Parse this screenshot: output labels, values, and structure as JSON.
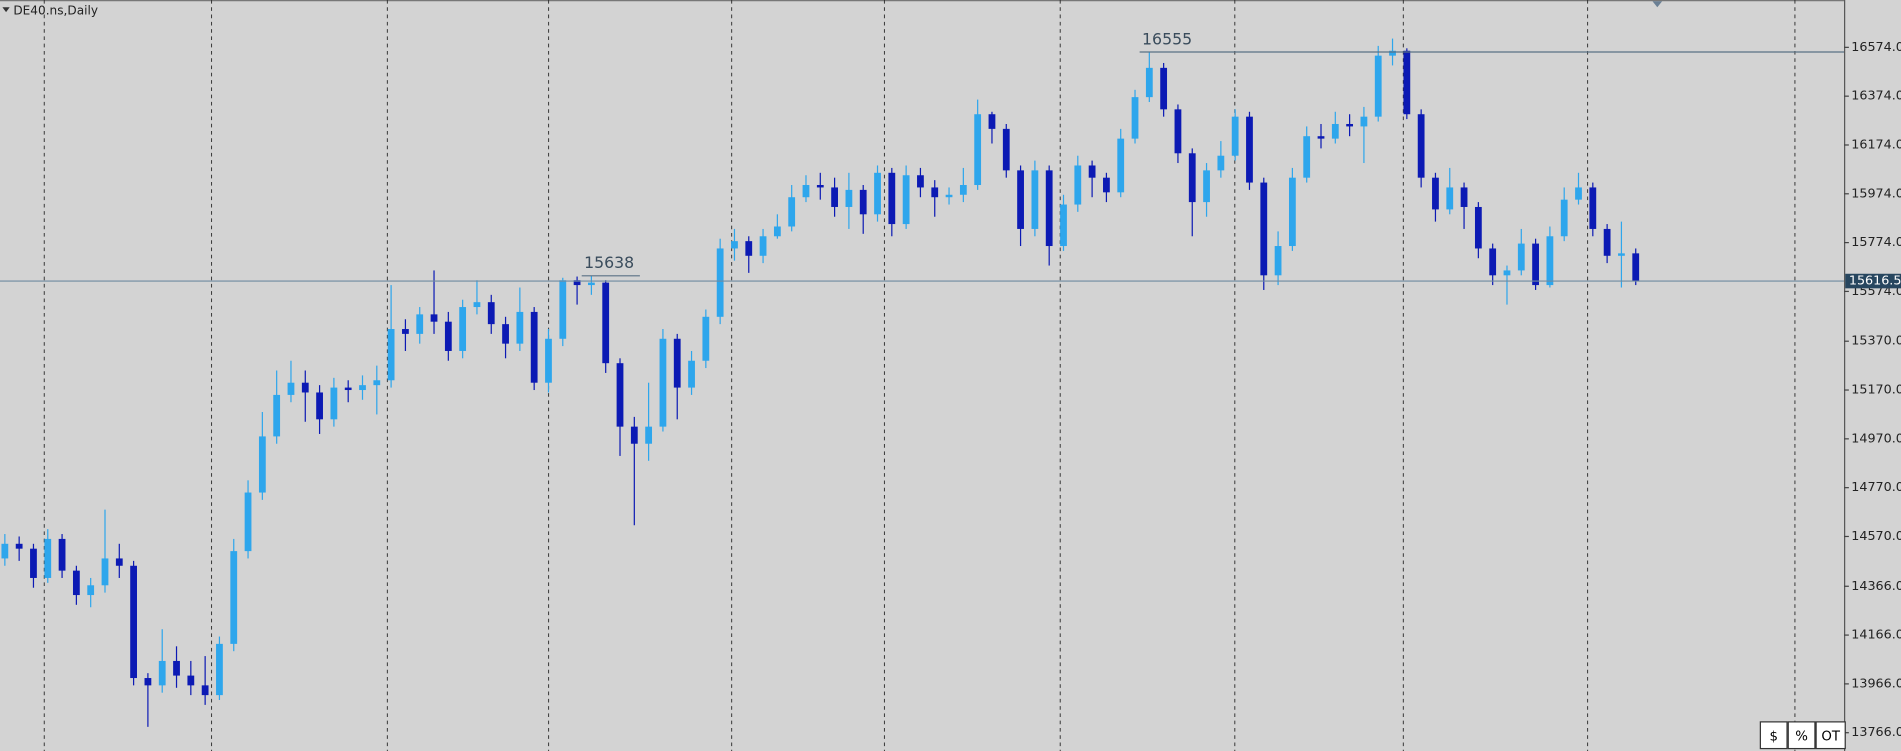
{
  "chart_data": {
    "type": "candlestick",
    "title": "DE40.ns,Daily",
    "up_color": "#2ea6ec",
    "down_color": "#0c1ab4",
    "open": [
      14480,
      14540,
      14520,
      14400,
      14560,
      14430,
      14330,
      14370,
      14480,
      14450,
      13990,
      13960,
      14060,
      14000,
      13960,
      13920,
      14130,
      14510,
      14750,
      14980,
      15150,
      15200,
      15160,
      15050,
      15180,
      15170,
      15190,
      15210,
      15420,
      15400,
      15480,
      15450,
      15330,
      15510,
      15530,
      15440,
      15360,
      15490,
      15200,
      15380,
      15620,
      15600,
      15610,
      15280,
      15020,
      14950,
      15020,
      15380,
      15180,
      15290,
      15470,
      15750,
      15780,
      15720,
      15800,
      15840,
      15960,
      16010,
      16000,
      15920,
      15990,
      15890,
      16060,
      15850,
      16050,
      16000,
      15960,
      15970,
      16010,
      16300,
      16240,
      16070,
      15830,
      16070,
      15760,
      15930,
      16090,
      16040,
      15980,
      16200,
      16370,
      16490,
      16320,
      16140,
      15940,
      16070,
      16130,
      16290,
      16020,
      15640,
      15760,
      16040,
      16210,
      16200,
      16260,
      16250,
      16290,
      16540,
      16560,
      16300,
      16040,
      15910,
      16000,
      15920,
      15750,
      15640,
      15660,
      15770,
      15600,
      15800,
      15950,
      16000,
      15830,
      15720,
      15730
    ],
    "high": [
      14580,
      14570,
      14540,
      14600,
      14580,
      14450,
      14400,
      14680,
      14540,
      14470,
      14010,
      14190,
      14120,
      14060,
      14080,
      14160,
      14560,
      14800,
      15080,
      15250,
      15290,
      15250,
      15190,
      15220,
      15210,
      15230,
      15270,
      15600,
      15460,
      15510,
      15660,
      15490,
      15540,
      15620,
      15560,
      15470,
      15590,
      15510,
      15420,
      15630,
      15635,
      15638,
      15620,
      15300,
      15060,
      15200,
      15420,
      15400,
      15330,
      15500,
      15790,
      15830,
      15800,
      15830,
      15890,
      16010,
      16050,
      16060,
      16040,
      16060,
      16010,
      16090,
      16080,
      16090,
      16080,
      16030,
      16000,
      16080,
      16360,
      16310,
      16260,
      16090,
      16110,
      16090,
      15970,
      16130,
      16110,
      16060,
      16240,
      16400,
      16555,
      16510,
      16340,
      16160,
      16100,
      16190,
      16320,
      16310,
      16040,
      15820,
      16080,
      16250,
      16260,
      16310,
      16300,
      16330,
      16580,
      16610,
      16570,
      16320,
      16060,
      16080,
      16020,
      15940,
      15770,
      15680,
      15830,
      15790,
      15840,
      16000,
      16060,
      16020,
      15850,
      15860,
      15750
    ],
    "low": [
      14450,
      14470,
      14360,
      14380,
      14400,
      14290,
      14280,
      14340,
      14400,
      13960,
      13790,
      13930,
      13950,
      13920,
      13880,
      13900,
      14100,
      14480,
      14720,
      14950,
      15120,
      15040,
      14990,
      15020,
      15120,
      15130,
      15070,
      15180,
      15330,
      15360,
      15400,
      15290,
      15300,
      15480,
      15400,
      15300,
      15330,
      15170,
      15160,
      15350,
      15520,
      15560,
      15240,
      14900,
      14616,
      14880,
      15000,
      15050,
      15150,
      15260,
      15440,
      15700,
      15650,
      15690,
      15790,
      15820,
      15940,
      15950,
      15880,
      15830,
      15810,
      15860,
      15800,
      15830,
      15960,
      15880,
      15930,
      15940,
      15990,
      16180,
      16040,
      15760,
      15800,
      15680,
      15740,
      15900,
      15960,
      15940,
      15960,
      16180,
      16350,
      16290,
      16100,
      15800,
      15880,
      16040,
      16110,
      15990,
      15580,
      15600,
      15740,
      16020,
      16160,
      16180,
      16210,
      16100,
      16270,
      16500,
      16280,
      16000,
      15860,
      15890,
      15830,
      15710,
      15600,
      15520,
      15640,
      15580,
      15590,
      15780,
      15930,
      15800,
      15690,
      15590,
      15600
    ],
    "close": [
      14540,
      14520,
      14400,
      14560,
      14430,
      14330,
      14370,
      14480,
      14450,
      13990,
      13960,
      14060,
      14000,
      13960,
      13920,
      14130,
      14510,
      14750,
      14980,
      15150,
      15200,
      15160,
      15050,
      15180,
      15170,
      15190,
      15210,
      15420,
      15400,
      15480,
      15450,
      15330,
      15510,
      15530,
      15440,
      15360,
      15490,
      15200,
      15380,
      15620,
      15600,
      15610,
      15280,
      15020,
      14950,
      15020,
      15380,
      15180,
      15290,
      15470,
      15750,
      15780,
      15720,
      15800,
      15840,
      15960,
      16010,
      16000,
      15920,
      15990,
      15890,
      16060,
      15850,
      16050,
      16000,
      15960,
      15970,
      16010,
      16300,
      16240,
      16070,
      15830,
      16070,
      15760,
      15930,
      16090,
      16040,
      15980,
      16200,
      16370,
      16490,
      16320,
      16140,
      15940,
      16070,
      16130,
      16290,
      16020,
      15640,
      15760,
      16040,
      16210,
      16200,
      16260,
      16250,
      16290,
      16540,
      16560,
      16300,
      16040,
      15910,
      16000,
      15920,
      15750,
      15640,
      15660,
      15770,
      15600,
      15800,
      15950,
      16000,
      15830,
      15720,
      15730,
      15616.5
    ],
    "ylim": [
      13701,
      16768
    ],
    "yticks": [
      {
        "value": 16574,
        "label": "16574.0"
      },
      {
        "value": 16374,
        "label": "16374.0"
      },
      {
        "value": 16174,
        "label": "16174.0"
      },
      {
        "value": 15974,
        "label": "15974.0"
      },
      {
        "value": 15774,
        "label": "15774.0"
      },
      {
        "value": 15574,
        "label": "15574.0"
      },
      {
        "value": 15370,
        "label": "15370.0"
      },
      {
        "value": 15170,
        "label": "15170.0"
      },
      {
        "value": 14970,
        "label": "14970.0"
      },
      {
        "value": 14770,
        "label": "14770.0"
      },
      {
        "value": 14570,
        "label": "14570.0"
      },
      {
        "value": 14366,
        "label": "14366.0"
      },
      {
        "value": 14166,
        "label": "14166.0"
      },
      {
        "value": 13966,
        "label": "13966.0"
      },
      {
        "value": 13766,
        "label": "13766.0"
      }
    ],
    "current_price": 15616.5,
    "high_marks": [
      {
        "value": 15638,
        "index": 41
      },
      {
        "value": 16555,
        "index": 80
      }
    ],
    "buttons": [
      "$",
      "%",
      "OT"
    ]
  }
}
